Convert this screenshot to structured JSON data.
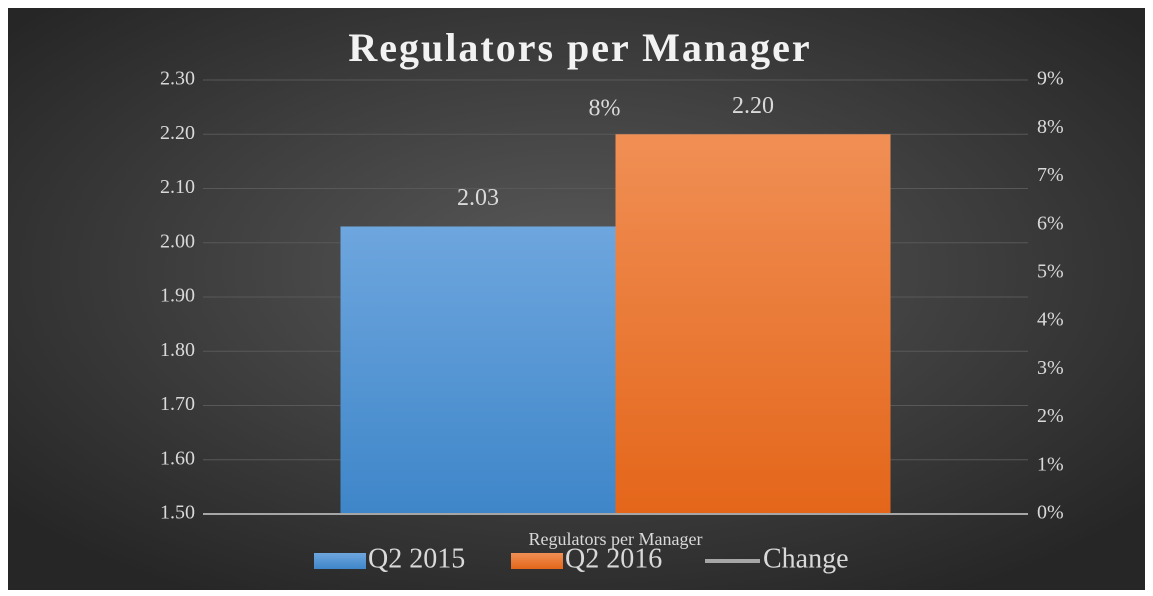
{
  "chart_data": {
    "type": "bar",
    "title": "Regulators per Manager",
    "categories": [
      "Regulators per Manager"
    ],
    "series": [
      {
        "name": "Q2 2015",
        "color": "#4a90d9",
        "values": [
          2.03
        ],
        "value_labels": [
          "2.03"
        ]
      },
      {
        "name": "Q2 2016",
        "color": "#f07a2a",
        "values": [
          2.2
        ],
        "value_labels": [
          "2.20"
        ]
      },
      {
        "name": "Change",
        "color": "#a6a6a6",
        "type": "line",
        "axis": "y2",
        "values": [
          8
        ],
        "value_labels": [
          "8%"
        ]
      }
    ],
    "ylim": [
      1.5,
      2.3
    ],
    "yticks": [
      {
        "value": 1.5,
        "label": "1.50"
      },
      {
        "value": 1.6,
        "label": "1.60"
      },
      {
        "value": 1.7,
        "label": "1.70"
      },
      {
        "value": 1.8,
        "label": "1.80"
      },
      {
        "value": 1.9,
        "label": "1.90"
      },
      {
        "value": 2.0,
        "label": "2.00"
      },
      {
        "value": 2.1,
        "label": "2.10"
      },
      {
        "value": 2.2,
        "label": "2.20"
      },
      {
        "value": 2.3,
        "label": "2.30"
      }
    ],
    "y2lim": [
      0,
      9
    ],
    "y2ticks": [
      {
        "value": 0,
        "label": "0%"
      },
      {
        "value": 1,
        "label": "1%"
      },
      {
        "value": 2,
        "label": "2%"
      },
      {
        "value": 3,
        "label": "3%"
      },
      {
        "value": 4,
        "label": "4%"
      },
      {
        "value": 5,
        "label": "5%"
      },
      {
        "value": 6,
        "label": "6%"
      },
      {
        "value": 7,
        "label": "7%"
      },
      {
        "value": 8,
        "label": "8%"
      },
      {
        "value": 9,
        "label": "9%"
      }
    ],
    "grid": true,
    "legend": "bottom"
  }
}
